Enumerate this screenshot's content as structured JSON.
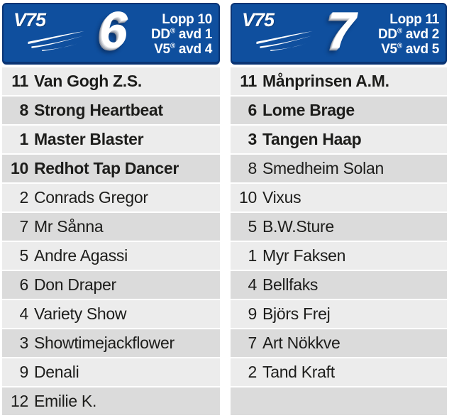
{
  "reg_mark": "®",
  "colors": {
    "header_blue": "#0f4f9e",
    "header_border": "#0a3474",
    "row_light": "#ececec",
    "row_dark": "#dbdbdb",
    "text_dark": "#1d1d1b",
    "text_white": "#ffffff"
  },
  "panels": [
    {
      "brand": "V75",
      "race_number": "6",
      "info_lines": {
        "lopp": "Lopp 10",
        "dd_prefix": "DD",
        "dd_suffix": "avd 1",
        "v5_prefix": "V5",
        "v5_suffix": "avd 4"
      },
      "horses": [
        {
          "num": "11",
          "name": "Van Gogh Z.S.",
          "bold": true
        },
        {
          "num": "8",
          "name": "Strong Heartbeat",
          "bold": true
        },
        {
          "num": "1",
          "name": "Master Blaster",
          "bold": true
        },
        {
          "num": "10",
          "name": "Redhot Tap Dancer",
          "bold": true
        },
        {
          "num": "2",
          "name": "Conrads Gregor",
          "bold": false
        },
        {
          "num": "7",
          "name": "Mr Sånna",
          "bold": false
        },
        {
          "num": "5",
          "name": "Andre Agassi",
          "bold": false
        },
        {
          "num": "6",
          "name": "Don Draper",
          "bold": false
        },
        {
          "num": "4",
          "name": "Variety Show",
          "bold": false
        },
        {
          "num": "3",
          "name": "Showtimejackflower",
          "bold": false
        },
        {
          "num": "9",
          "name": "Denali",
          "bold": false
        },
        {
          "num": "12",
          "name": "Emilie K.",
          "bold": false
        }
      ]
    },
    {
      "brand": "V75",
      "race_number": "7",
      "info_lines": {
        "lopp": "Lopp 11",
        "dd_prefix": "DD",
        "dd_suffix": "avd 2",
        "v5_prefix": "V5",
        "v5_suffix": "avd 5"
      },
      "horses": [
        {
          "num": "11",
          "name": "Månprinsen A.M.",
          "bold": true
        },
        {
          "num": "6",
          "name": "Lome Brage",
          "bold": true
        },
        {
          "num": "3",
          "name": "Tangen Haap",
          "bold": true
        },
        {
          "num": "8",
          "name": "Smedheim Solan",
          "bold": false
        },
        {
          "num": "10",
          "name": "Vixus",
          "bold": false
        },
        {
          "num": "5",
          "name": "B.W.Sture",
          "bold": false
        },
        {
          "num": "1",
          "name": "Myr Faksen",
          "bold": false
        },
        {
          "num": "4",
          "name": "Bellfaks",
          "bold": false
        },
        {
          "num": "9",
          "name": "Björs Frej",
          "bold": false
        },
        {
          "num": "7",
          "name": "Art Nökkve",
          "bold": false
        },
        {
          "num": "2",
          "name": "Tand Kraft",
          "bold": false
        },
        {
          "num": "",
          "name": "",
          "bold": false
        }
      ]
    }
  ]
}
